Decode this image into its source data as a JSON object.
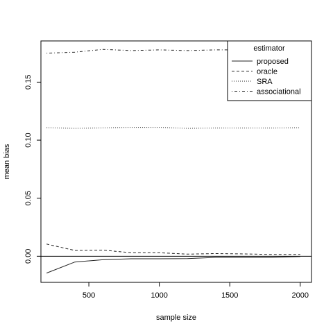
{
  "chart_data": {
    "type": "line",
    "xlabel": "sample size",
    "ylabel": "mean bias",
    "xlim": [
      160,
      2080
    ],
    "ylim": [
      -0.0225,
      0.1855
    ],
    "xticks": [
      500,
      1000,
      1500,
      2000
    ],
    "xtick_labels": [
      "500",
      "1000",
      "1500",
      "2000"
    ],
    "yticks": [
      0.0,
      0.05,
      0.1,
      0.15
    ],
    "ytick_labels": [
      "0.00",
      "0.05",
      "0.10",
      "0.15"
    ],
    "reference_line_y": 0,
    "grid": false,
    "legend": {
      "title": "estimator",
      "position": "top-right"
    },
    "x": [
      200,
      400,
      600,
      800,
      1000,
      1200,
      1400,
      1600,
      1800,
      2000
    ],
    "series": [
      {
        "name": "proposed",
        "line_style": "solid",
        "color": "#222222",
        "values": [
          -0.0145,
          -0.005,
          -0.003,
          -0.0022,
          -0.0022,
          -0.002,
          -0.001,
          -0.001,
          -0.001,
          -0.0003
        ]
      },
      {
        "name": "oracle",
        "line_style": "dashed",
        "color": "#222222",
        "values": [
          0.0105,
          0.005,
          0.0053,
          0.003,
          0.003,
          0.0018,
          0.0023,
          0.002,
          0.0015,
          0.0015
        ]
      },
      {
        "name": "SRA",
        "line_style": "dotted",
        "color": "#222222",
        "values": [
          0.1108,
          0.1102,
          0.1106,
          0.111,
          0.111,
          0.1102,
          0.1105,
          0.1105,
          0.1105,
          0.1107
        ]
      },
      {
        "name": "associational",
        "line_style": "dotdash",
        "color": "#222222",
        "values": [
          0.175,
          0.1758,
          0.1782,
          0.1772,
          0.1778,
          0.1772,
          0.1778,
          0.1778,
          0.1778,
          0.1778
        ]
      }
    ]
  }
}
